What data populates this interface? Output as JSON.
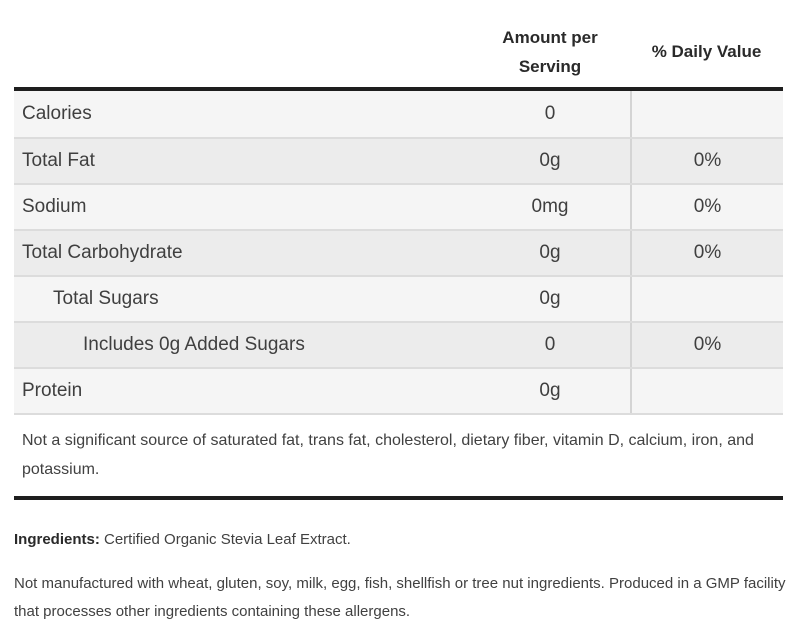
{
  "header": {
    "amount_label": "Amount per Serving",
    "daily_value_label": "% Daily Value"
  },
  "table": {
    "rows": [
      {
        "label": "Calories",
        "amount": "0",
        "daily_value": "",
        "indent": 0
      },
      {
        "label": "Total Fat",
        "amount": "0g",
        "daily_value": "0%",
        "indent": 0
      },
      {
        "label": "Sodium",
        "amount": "0mg",
        "daily_value": "0%",
        "indent": 0
      },
      {
        "label": "Total Carbohydrate",
        "amount": "0g",
        "daily_value": "0%",
        "indent": 0
      },
      {
        "label": "Total Sugars",
        "amount": "0g",
        "daily_value": "",
        "indent": 1
      },
      {
        "label": "Includes 0g Added Sugars",
        "amount": "0",
        "daily_value": "0%",
        "indent": 2
      },
      {
        "label": "Protein",
        "amount": "0g",
        "daily_value": "",
        "indent": 0
      }
    ],
    "footnote": "Not a significant source of saturated fat, trans fat, cholesterol, dietary fiber, vitamin D, calcium, iron, and potassium."
  },
  "ingredients": {
    "label": "Ingredients:",
    "text": " Certified Organic Stevia Leaf Extract."
  },
  "allergen_statement": "Not manufactured with wheat, gluten, soy, milk, egg, fish, shellfish or tree nut ingredients. Produced in a GMP facility that processes other ingredients containing these allergens.",
  "colors": {
    "thick_rule": "#1e1e1e",
    "row_light": "#f5f5f5",
    "row_dark": "#ececec",
    "row_divider": "#dcdcdc",
    "column_divider": "#d4d4d4",
    "text": "#414141",
    "heading_text": "#2a2a2a"
  }
}
